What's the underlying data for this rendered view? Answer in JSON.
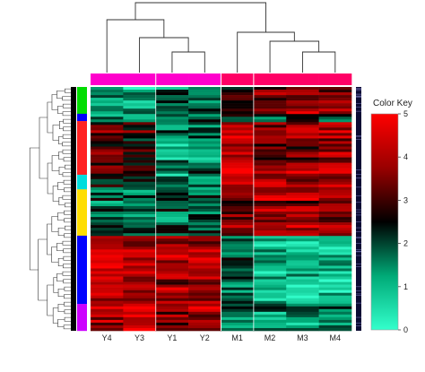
{
  "chart_data": {
    "type": "heatmap",
    "title": "",
    "xlabel": "",
    "ylabel": "",
    "columns": [
      "Y4",
      "Y3",
      "Y1",
      "Y2",
      "M1",
      "M2",
      "M3",
      "M4"
    ],
    "column_groups": [
      "Y",
      "Y",
      "Y",
      "Y",
      "M",
      "M",
      "M",
      "M"
    ],
    "column_group_colors": {
      "Y": "#ff00cc",
      "M": "#ff0066"
    },
    "row_cluster_colors": [
      "#00dd00",
      "#0000ff",
      "#ff2222",
      "#00dddd",
      "#ffdd00",
      "#0000ff",
      "#cc00ff"
    ],
    "row_cluster_fractions": [
      0.11,
      0.03,
      0.22,
      0.06,
      0.19,
      0.28,
      0.11
    ],
    "row_count": 90,
    "block_means": [
      [
        1.3,
        1.0,
        1.8,
        1.8,
        2.7,
        3.5,
        3.6,
        3.5
      ],
      [
        1.2,
        0.8,
        1.7,
        1.7,
        2.0,
        1.6,
        1.8,
        1.7
      ],
      [
        3.2,
        2.7,
        1.3,
        1.4,
        4.3,
        3.5,
        3.7,
        3.8
      ],
      [
        2.2,
        2.0,
        1.6,
        1.4,
        3.9,
        3.6,
        3.6,
        3.8
      ],
      [
        1.7,
        1.5,
        1.7,
        1.8,
        3.4,
        3.8,
        3.8,
        3.7
      ],
      [
        4.2,
        4.0,
        3.9,
        3.9,
        1.9,
        0.9,
        1.0,
        1.1
      ],
      [
        3.9,
        4.3,
        3.7,
        3.7,
        1.2,
        1.5,
        1.5,
        1.6
      ]
    ],
    "color_key": {
      "title": "Color Key",
      "min": 0,
      "max": 5,
      "ticks": [
        "0",
        "1",
        "2",
        "3",
        "4",
        "5"
      ],
      "colors": [
        "#33ffcc",
        "#00aa77",
        "#000000",
        "#990000",
        "#ff0000"
      ]
    }
  }
}
